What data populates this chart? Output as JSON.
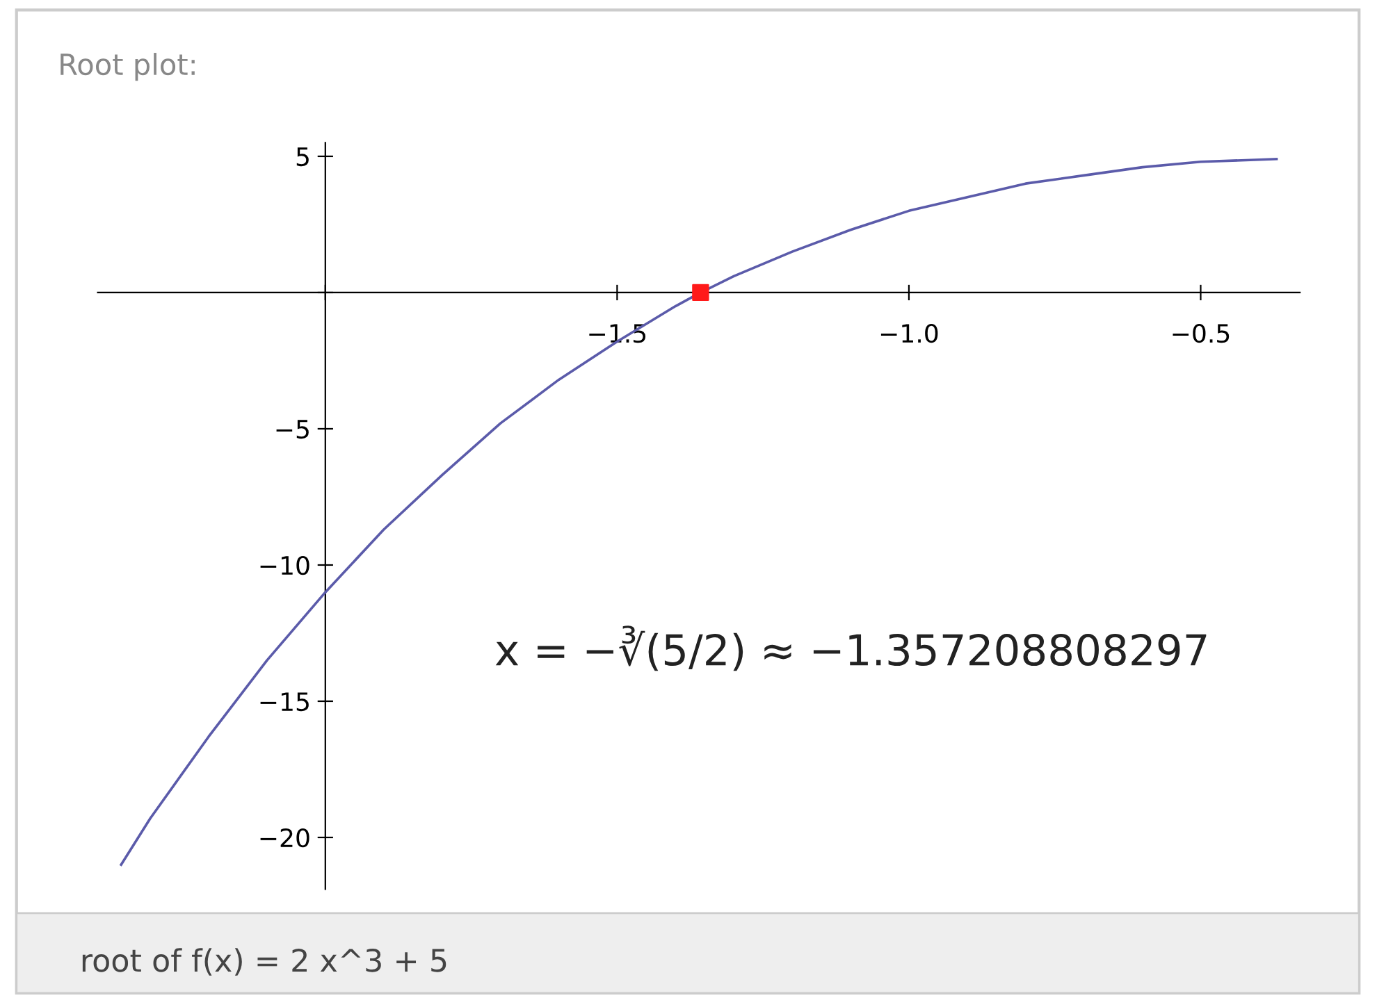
{
  "chart_data": {
    "type": "line",
    "title": "Root plot:",
    "series": [
      {
        "color": "#5b5baa",
        "x": [
          -2.35,
          -2.3,
          -2.2,
          -2.1,
          -2.0,
          -1.9,
          -1.8,
          -1.7,
          -1.6,
          -1.5,
          -1.4,
          -1.357,
          -1.3,
          -1.2,
          -1.1,
          -1.0,
          -0.9,
          -0.8,
          -0.7,
          -0.6,
          -0.5,
          -0.37
        ],
        "values": [
          -21.0,
          -19.3,
          -16.3,
          -13.5,
          -11.0,
          -8.7,
          -6.7,
          -4.8,
          -3.2,
          -1.8,
          -0.5,
          0.0,
          0.6,
          1.5,
          2.3,
          3.0,
          3.5,
          4.0,
          4.3,
          4.6,
          4.8,
          4.9
        ]
      },
      {
        "type": "scatter",
        "color": "#ff1a1a",
        "marker": "square",
        "x": [
          -1.357
        ],
        "values": [
          0
        ]
      }
    ],
    "xlim": [
      -2.39,
      -0.33
    ],
    "ylim": [
      -21.9,
      5.5
    ],
    "xticks": [
      {
        "value": -2.0,
        "label": null
      },
      {
        "value": -1.5,
        "label": "−1.5"
      },
      {
        "value": -1.0,
        "label": "−1.0"
      },
      {
        "value": -0.5,
        "label": "−0.5"
      }
    ],
    "yticks": [
      {
        "value": 5,
        "label": "5"
      },
      {
        "value": 0,
        "label": null
      },
      {
        "value": -5,
        "label": "−5"
      },
      {
        "value": -10,
        "label": "−10"
      },
      {
        "value": -15,
        "label": "−15"
      },
      {
        "value": -20,
        "label": "−20"
      }
    ],
    "grid": false,
    "annotations": [
      "x = −∛(5/2) ≈ −1.357208808297",
      "root of f(x) = 2 x^3 + 5"
    ]
  }
}
